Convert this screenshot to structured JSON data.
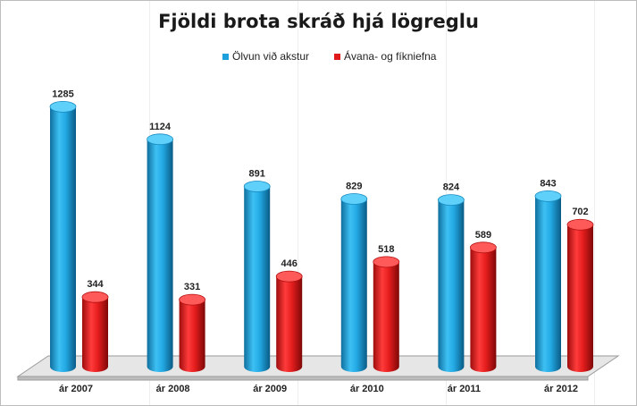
{
  "chart_data": {
    "type": "bar",
    "title": "Fjöldi brota skráð hjá lögreglu",
    "categories": [
      "ár 2007",
      "ár 2008",
      "ár 2009",
      "ár 2010",
      "ár 2011",
      "ár 2012"
    ],
    "series": [
      {
        "name": "Ölvun við akstur",
        "values": [
          1285,
          1124,
          891,
          829,
          824,
          843
        ],
        "color": "#1ea0dc"
      },
      {
        "name": "Ávana- og fíkniefna",
        "values": [
          344,
          331,
          446,
          518,
          589,
          702
        ],
        "color": "#e01a1a"
      }
    ],
    "xlabel": "",
    "ylabel": "",
    "ylim": [
      0,
      1300
    ],
    "grid": false,
    "legend_position": "top",
    "style": "3d-cylinder"
  }
}
